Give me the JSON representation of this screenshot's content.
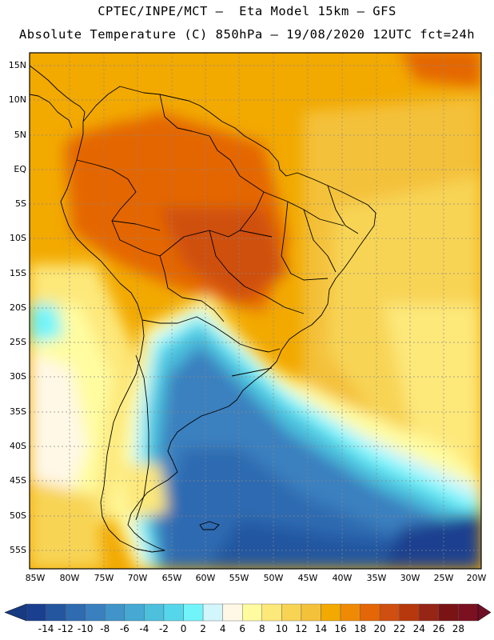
{
  "header": {
    "line1": "CPTEC/INPE/MCT –  Eta Model 15km – GFS",
    "line2": "Absolute Temperature (C) 850hPa – 19/08/2020 12UTC fct=24h"
  },
  "map": {
    "region": "South America",
    "variable": "Temperature at 850 hPa",
    "lat_labels": [
      "15N",
      "10N",
      "5N",
      "EQ",
      "5S",
      "10S",
      "15S",
      "20S",
      "25S",
      "30S",
      "35S",
      "40S",
      "45S",
      "50S",
      "55S"
    ],
    "lat_values": [
      15,
      10,
      5,
      0,
      -5,
      -10,
      -15,
      -20,
      -25,
      -30,
      -35,
      -40,
      -45,
      -50,
      -55
    ],
    "lon_labels": [
      "85W",
      "80W",
      "75W",
      "70W",
      "65W",
      "60W",
      "55W",
      "50W",
      "45W",
      "40W",
      "35W",
      "30W",
      "25W",
      "20W"
    ],
    "lon_values": [
      -85,
      -80,
      -75,
      -70,
      -65,
      -60,
      -55,
      -50,
      -45,
      -40,
      -35,
      -30,
      -25,
      -20
    ]
  },
  "colorbar": {
    "labels": [
      "-14",
      "-12",
      "-10",
      "-8",
      "-6",
      "-4",
      "-2",
      "0",
      "2",
      "4",
      "6",
      "8",
      "10",
      "12",
      "14",
      "16",
      "18",
      "20",
      "22",
      "24",
      "26",
      "28"
    ],
    "colors": [
      "#1b3f8f",
      "#2456a0",
      "#2e6bb1",
      "#3a80bf",
      "#4094c9",
      "#45a9d3",
      "#4cc0dd",
      "#56d6ea",
      "#72f4fb",
      "#d2f6fb",
      "#fff8e6",
      "#fffca0",
      "#fde87a",
      "#f8d455",
      "#f4c13b",
      "#f2a900",
      "#f08a05",
      "#e46606",
      "#cf4f10",
      "#b8380e",
      "#962516",
      "#7a1414",
      "#7a1020"
    ],
    "left_arrow_color": "#173a82",
    "right_arrow_color": "#6e0f26"
  }
}
